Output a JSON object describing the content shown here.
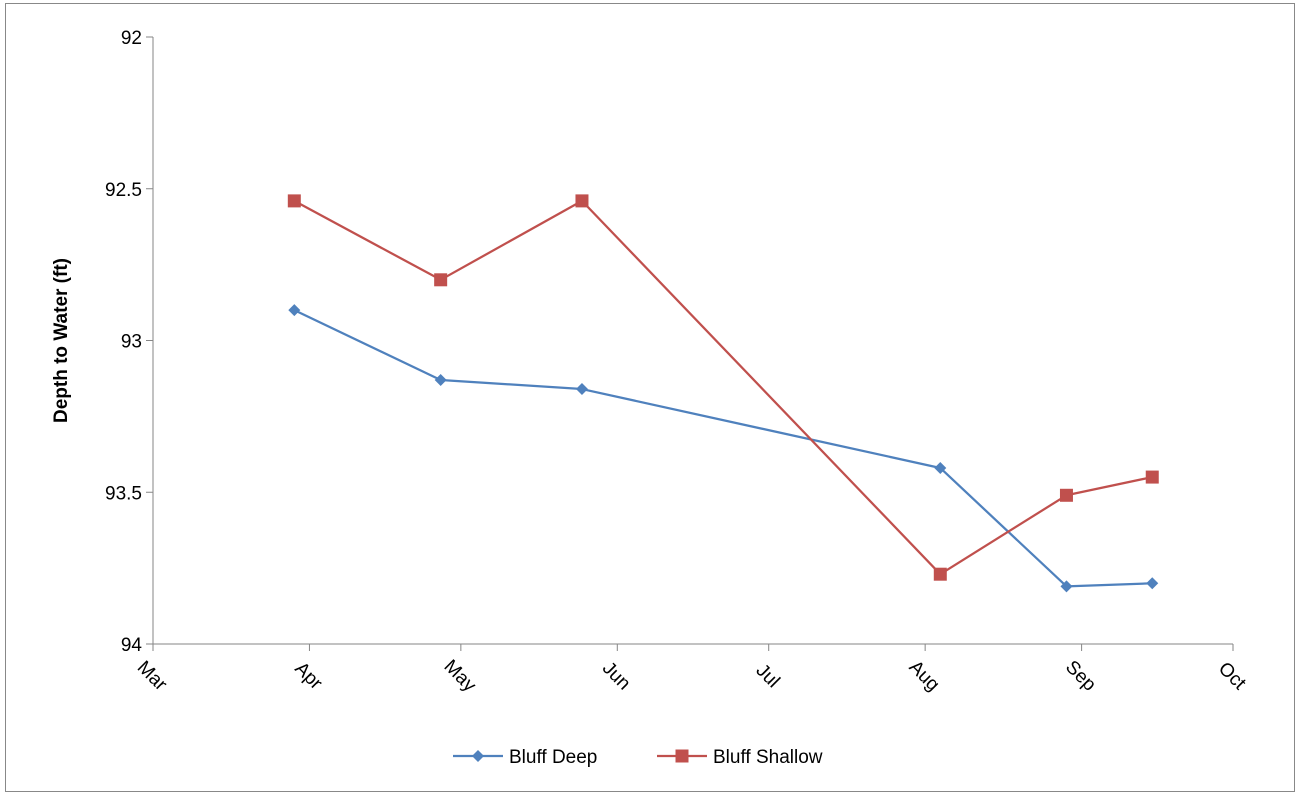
{
  "chart_data": {
    "type": "line",
    "title": "",
    "xlabel": "",
    "ylabel": "Depth to Water (ft)",
    "ylim": [
      92,
      94
    ],
    "y_inverted": true,
    "y_ticks": [
      92,
      92.5,
      93,
      93.5,
      94
    ],
    "y_tick_labels": [
      "92",
      "92.5",
      "93",
      "93.5",
      "94"
    ],
    "xlim": [
      "2011-03-01",
      "2011-10-01"
    ],
    "x_ticks": [
      "2011-03-01",
      "2011-04-01",
      "2011-05-01",
      "2011-06-01",
      "2011-07-01",
      "2011-08-01",
      "2011-09-01",
      "2011-10-01"
    ],
    "x_tick_labels": [
      "Mar",
      "Apr",
      "May",
      "Jun",
      "Jul",
      "Aug",
      "Sep",
      "Oct"
    ],
    "grid": false,
    "legend_position": "bottom",
    "series": [
      {
        "name": "Bluff Deep",
        "color": "#4F81BD",
        "marker": "diamond",
        "x": [
          "2011-03-29",
          "2011-04-27",
          "2011-05-25",
          "2011-08-04",
          "2011-08-29",
          "2011-09-15"
        ],
        "y": [
          92.9,
          93.13,
          93.16,
          93.42,
          93.81,
          93.8
        ]
      },
      {
        "name": "Bluff Shallow",
        "color": "#C0504D",
        "marker": "square",
        "x": [
          "2011-03-29",
          "2011-04-27",
          "2011-05-25",
          "2011-08-04",
          "2011-08-29",
          "2011-09-15"
        ],
        "y": [
          92.54,
          92.8,
          92.54,
          93.77,
          93.51,
          93.45
        ]
      }
    ]
  }
}
